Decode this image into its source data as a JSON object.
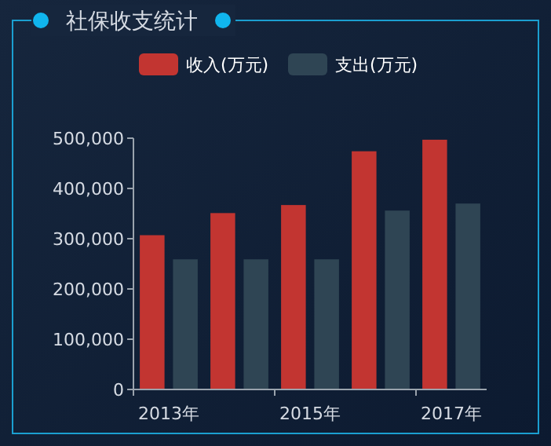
{
  "chart_data": {
    "type": "bar",
    "title": "社保收支统计",
    "categories": [
      "2013年",
      null,
      "2015年",
      null,
      "2017年"
    ],
    "series": [
      {
        "name": "收入(万元)",
        "color": "#c23531",
        "values": [
          307000,
          351000,
          367000,
          474000,
          497000
        ]
      },
      {
        "name": "支出(万元)",
        "color": "#2f4554",
        "values": [
          259000,
          259000,
          259000,
          356000,
          370000
        ]
      }
    ],
    "ylim": [
      0,
      500000
    ],
    "yticks": [
      {
        "value": 0,
        "label": "0"
      },
      {
        "value": 100000,
        "label": "100,000"
      },
      {
        "value": 200000,
        "label": "200,000"
      },
      {
        "value": 300000,
        "label": "300,000"
      },
      {
        "value": 400000,
        "label": "400,000"
      },
      {
        "value": 500000,
        "label": "500,000"
      }
    ],
    "grid": false,
    "legend": "top"
  }
}
